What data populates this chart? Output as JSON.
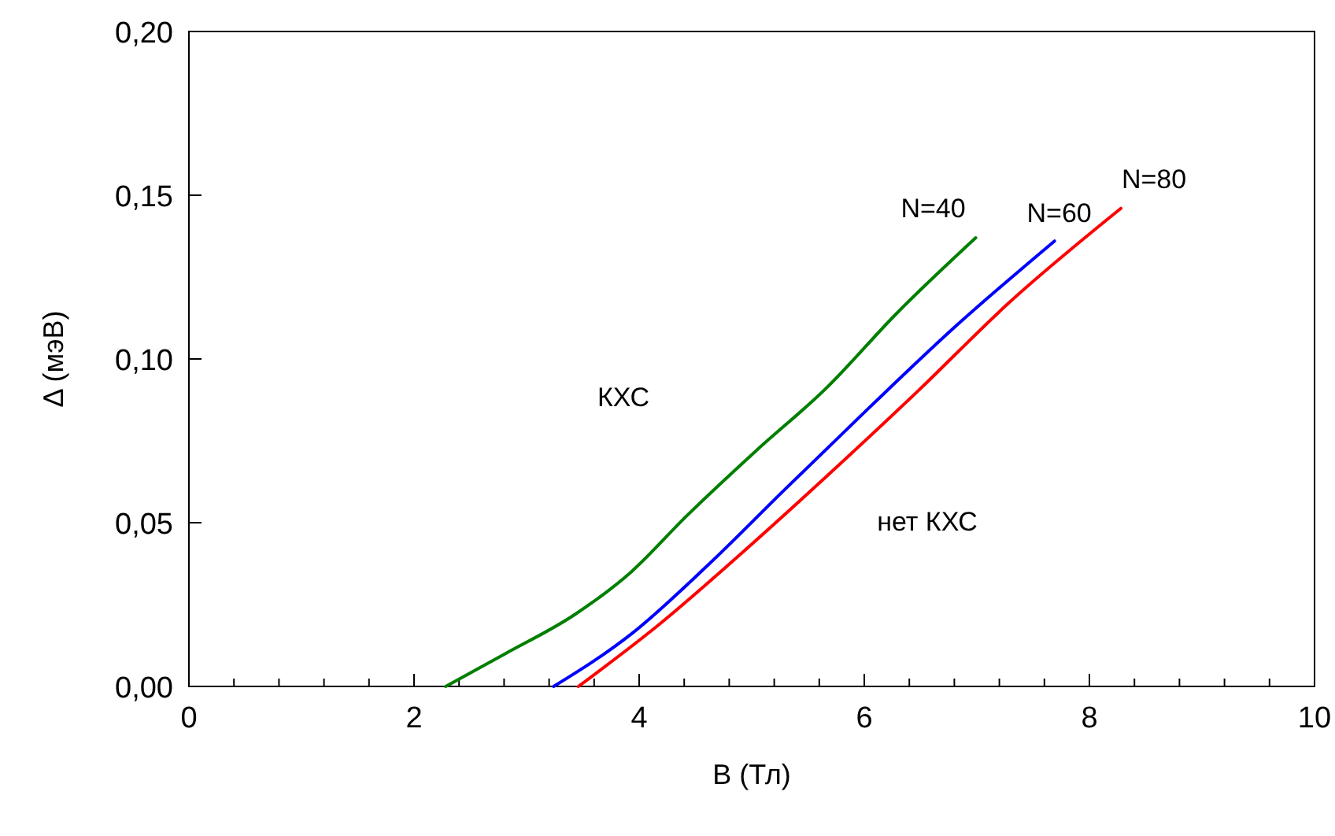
{
  "chart_data": {
    "type": "line",
    "xlabel": "B (Тл)",
    "ylabel": "Δ (мэВ)",
    "xlim": [
      0,
      10
    ],
    "ylim": [
      0,
      0.2
    ],
    "xticks": [
      0,
      {
        "value": 0.4,
        "label": null
      },
      {
        "value": 0.8,
        "label": null
      },
      {
        "value": 1.2,
        "label": null
      },
      {
        "value": 1.6,
        "label": null
      },
      2,
      {
        "value": 2.4,
        "label": null
      },
      {
        "value": 2.8,
        "label": null
      },
      {
        "value": 3.2,
        "label": null
      },
      {
        "value": 3.6,
        "label": null
      },
      4,
      {
        "value": 4.4,
        "label": null
      },
      {
        "value": 4.8,
        "label": null
      },
      {
        "value": 5.2,
        "label": null
      },
      {
        "value": 5.6,
        "label": null
      },
      6,
      {
        "value": 6.4,
        "label": null
      },
      {
        "value": 6.8,
        "label": null
      },
      {
        "value": 7.2,
        "label": null
      },
      {
        "value": 7.6,
        "label": null
      },
      8,
      {
        "value": 8.4,
        "label": null
      },
      {
        "value": 8.8,
        "label": null
      },
      {
        "value": 9.2,
        "label": null
      },
      {
        "value": 9.6,
        "label": null
      },
      10
    ],
    "yticks": [
      {
        "value": 0,
        "label": "0,00"
      },
      {
        "value": 0.05,
        "label": "0,05"
      },
      {
        "value": 0.1,
        "label": "0,10"
      },
      {
        "value": 0.15,
        "label": "0,15"
      },
      {
        "value": 0.2,
        "label": "0,20"
      }
    ],
    "grid": false,
    "marker": "none",
    "line_style": "solid",
    "annotations": [
      "КХС",
      "нет КХС"
    ],
    "series": [
      {
        "name": "N=40",
        "color": "#007f00",
        "x": [
          2.28,
          2.81,
          3.43,
          3.93,
          4.42,
          5.04,
          5.66,
          6.29,
          6.99
        ],
        "values": [
          0,
          0.01,
          0.022,
          0.035,
          0.052,
          0.072,
          0.091,
          0.114,
          0.137
        ]
      },
      {
        "name": "N=60",
        "color": "#0000ff",
        "x": [
          3.24,
          3.93,
          4.61,
          5.29,
          6.04,
          6.78,
          7.69
        ],
        "values": [
          0,
          0.016,
          0.037,
          0.06,
          0.085,
          0.109,
          0.136
        ]
      },
      {
        "name": "N=80",
        "color": "#ff0000",
        "x": [
          3.46,
          4.18,
          4.92,
          5.66,
          6.47,
          7.28,
          8.28
        ],
        "values": [
          0,
          0.019,
          0.041,
          0.064,
          0.09,
          0.117,
          0.146
        ]
      }
    ]
  }
}
